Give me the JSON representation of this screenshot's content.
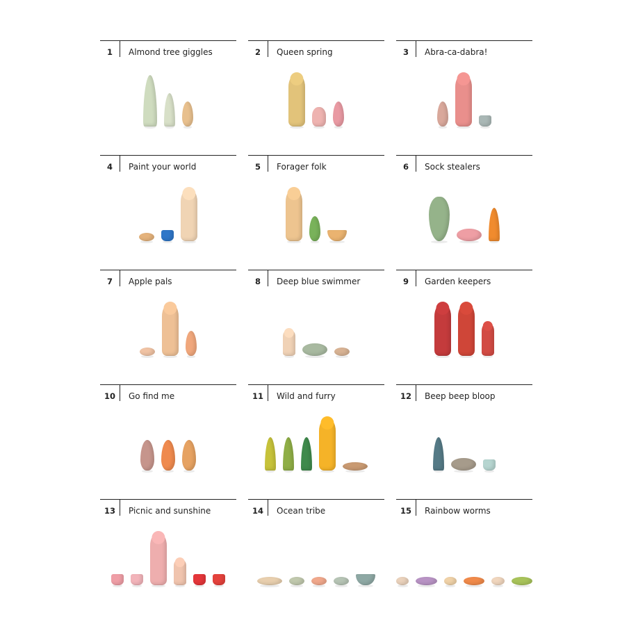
{
  "items": [
    {
      "number": "1",
      "title": "Almond tree giggles",
      "figures": [
        {
          "shape": "cone",
          "size": "tall",
          "color": "#cfdcbf"
        },
        {
          "shape": "cone",
          "size": "medium",
          "color": "#d8e0c8"
        },
        {
          "shape": "egg",
          "size": "small",
          "color": "#e8c08e"
        }
      ]
    },
    {
      "number": "2",
      "title": "Queen spring",
      "figures": [
        {
          "shape": "peg",
          "size": "tall",
          "color": "#e2c37a"
        },
        {
          "shape": "acorn",
          "size": "small",
          "color": "#eeb3b0"
        },
        {
          "shape": "egg",
          "size": "small",
          "color": "#e99aa3"
        }
      ]
    },
    {
      "number": "3",
      "title": "Abra-ca-dabra!",
      "figures": [
        {
          "shape": "egg",
          "size": "small",
          "color": "#d9a89b"
        },
        {
          "shape": "peg",
          "size": "tall",
          "color": "#e98f8c"
        },
        {
          "shape": "cup",
          "size": "small",
          "color": "#a9b7b5"
        }
      ]
    },
    {
      "number": "4",
      "title": "Paint your world",
      "figures": [
        {
          "shape": "disc",
          "size": "small",
          "color": "#e5b37c"
        },
        {
          "shape": "cup",
          "size": "small",
          "color": "#2f77c8"
        },
        {
          "shape": "peg",
          "size": "tall",
          "color": "#f0d4b4"
        }
      ]
    },
    {
      "number": "5",
      "title": "Forager folk",
      "figures": [
        {
          "shape": "peg",
          "size": "tall",
          "color": "#edc48f"
        },
        {
          "shape": "egg",
          "size": "small",
          "color": "#79b25a"
        },
        {
          "shape": "bowl",
          "size": "small",
          "color": "#eab370"
        }
      ]
    },
    {
      "number": "6",
      "title": "Sock stealers",
      "figures": [
        {
          "shape": "gourd",
          "size": "tall",
          "color": "#95b38a"
        },
        {
          "shape": "disc",
          "size": "medium",
          "color": "#ee9ea4"
        },
        {
          "shape": "cone",
          "size": "medium",
          "color": "#f08b2e"
        }
      ]
    },
    {
      "number": "7",
      "title": "Apple pals",
      "figures": [
        {
          "shape": "disc",
          "size": "small",
          "color": "#f0c3a4"
        },
        {
          "shape": "peg",
          "size": "tall",
          "color": "#eec095"
        },
        {
          "shape": "egg",
          "size": "small",
          "color": "#f0a77c"
        }
      ]
    },
    {
      "number": "8",
      "title": "Deep blue swimmer",
      "figures": [
        {
          "shape": "peg",
          "size": "small",
          "color": "#f0d2b6"
        },
        {
          "shape": "disc",
          "size": "medium",
          "color": "#a8b9a0"
        },
        {
          "shape": "disc",
          "size": "small",
          "color": "#d8b394"
        }
      ]
    },
    {
      "number": "9",
      "title": "Garden keepers",
      "figures": [
        {
          "shape": "peg",
          "size": "tall",
          "color": "#c43b3c"
        },
        {
          "shape": "peg",
          "size": "tall",
          "color": "#cf4638"
        },
        {
          "shape": "peg",
          "size": "medium",
          "color": "#d24b44"
        }
      ]
    },
    {
      "number": "10",
      "title": "Go find me",
      "figures": [
        {
          "shape": "egg",
          "size": "medium",
          "color": "#c6958c"
        },
        {
          "shape": "egg",
          "size": "medium",
          "color": "#ef8a4e"
        },
        {
          "shape": "egg",
          "size": "medium",
          "color": "#e6a262"
        }
      ]
    },
    {
      "number": "11",
      "title": "Wild and furry",
      "figures": [
        {
          "shape": "cone",
          "size": "medium",
          "color": "#c6c23a"
        },
        {
          "shape": "cone",
          "size": "medium",
          "color": "#8fae46"
        },
        {
          "shape": "cone",
          "size": "medium",
          "color": "#3f8a4c"
        },
        {
          "shape": "peg",
          "size": "tall",
          "color": "#f5b328"
        },
        {
          "shape": "stick",
          "size": "small",
          "color": "#c99a72"
        }
      ]
    },
    {
      "number": "12",
      "title": "Beep beep bloop",
      "figures": [
        {
          "shape": "cone",
          "size": "medium",
          "color": "#557a86"
        },
        {
          "shape": "disc",
          "size": "medium",
          "color": "#a69b8b"
        },
        {
          "shape": "cup",
          "size": "small",
          "color": "#b6d5d0"
        }
      ]
    },
    {
      "number": "13",
      "title": "Picnic and sunshine",
      "figures": [
        {
          "shape": "cup",
          "size": "small",
          "color": "#ef9ea6"
        },
        {
          "shape": "cup",
          "size": "small",
          "color": "#f2b4ba"
        },
        {
          "shape": "peg",
          "size": "tall",
          "color": "#eeaeae"
        },
        {
          "shape": "peg",
          "size": "small",
          "color": "#f0c4ae"
        },
        {
          "shape": "cup",
          "size": "small",
          "color": "#e4363a"
        },
        {
          "shape": "cup",
          "size": "small",
          "color": "#e4423c"
        }
      ]
    },
    {
      "number": "14",
      "title": "Ocean tribe",
      "figures": [
        {
          "shape": "stick",
          "size": "small",
          "color": "#e8cfae"
        },
        {
          "shape": "disc",
          "size": "small",
          "color": "#c0c8ad"
        },
        {
          "shape": "disc",
          "size": "small",
          "color": "#f0a88c"
        },
        {
          "shape": "disc",
          "size": "small",
          "color": "#b6c4b5"
        },
        {
          "shape": "bowl",
          "size": "small",
          "color": "#8ea8a4"
        }
      ]
    },
    {
      "number": "15",
      "title": "Rainbow worms",
      "figures": [
        {
          "shape": "disc",
          "size": "small",
          "color": "#ead2bc"
        },
        {
          "shape": "stick",
          "size": "small",
          "color": "#b893c4"
        },
        {
          "shape": "disc",
          "size": "small",
          "color": "#f0d2a8"
        },
        {
          "shape": "stick",
          "size": "small",
          "color": "#f08a4a"
        },
        {
          "shape": "disc",
          "size": "small",
          "color": "#f0d6be"
        },
        {
          "shape": "stick",
          "size": "small",
          "color": "#a8c35a"
        }
      ]
    }
  ]
}
